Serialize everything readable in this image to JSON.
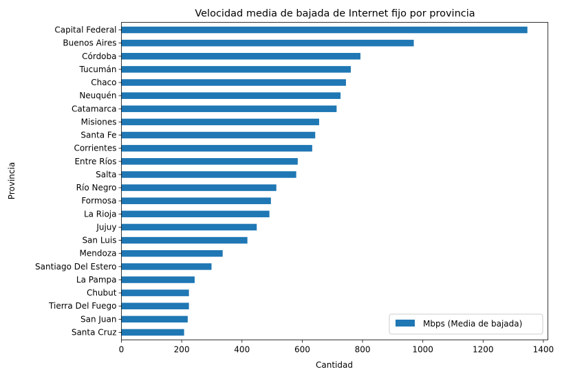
{
  "chart_data": {
    "type": "bar",
    "orientation": "horizontal",
    "title": "Velocidad media de bajada de Internet fijo por provincia",
    "xlabel": "Cantidad",
    "ylabel": "Provincia",
    "xlim": [
      0,
      1415
    ],
    "xticks": [
      0,
      200,
      400,
      600,
      800,
      1000,
      1200,
      1400
    ],
    "grid": false,
    "legend_position": "lower-right",
    "color": "#1f77b4",
    "categories": [
      "Capital Federal",
      "Buenos Aires",
      "Córdoba",
      "Tucumán",
      "Chaco",
      "Neuquén",
      "Catamarca",
      "Misiones",
      "Santa Fe",
      "Corrientes",
      "Entre Ríos",
      "Salta",
      "Río Negro",
      "Formosa",
      "La Rioja",
      "Jujuy",
      "San Luis",
      "Mendoza",
      "Santiago Del Estero",
      "La Pampa",
      "Chubut",
      "Tierra Del Fuego",
      "San Juan",
      "Santa Cruz"
    ],
    "series": [
      {
        "name": "Mbps (Media de bajada)",
        "values": [
          1347,
          970,
          793,
          761,
          745,
          727,
          714,
          656,
          643,
          633,
          585,
          580,
          514,
          496,
          491,
          449,
          418,
          336,
          299,
          243,
          224,
          224,
          220,
          208
        ]
      }
    ]
  }
}
